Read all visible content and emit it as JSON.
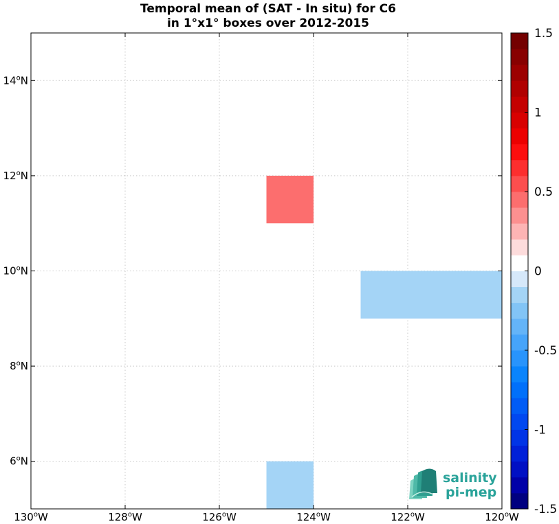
{
  "chart_data": {
    "type": "heatmap",
    "title_line1": "Temporal mean of (SAT - In situ) for C6",
    "title_line2": "in 1°x1° boxes over 2012-2015",
    "xlim": [
      -130,
      -120
    ],
    "ylim": [
      5,
      15
    ],
    "x_ticks": [
      {
        "value": -130,
        "label": "130",
        "unit": "W"
      },
      {
        "value": -128,
        "label": "128",
        "unit": "W"
      },
      {
        "value": -126,
        "label": "126",
        "unit": "W"
      },
      {
        "value": -124,
        "label": "124",
        "unit": "W"
      },
      {
        "value": -122,
        "label": "122",
        "unit": "W"
      },
      {
        "value": -120,
        "label": "120",
        "unit": "W"
      }
    ],
    "y_ticks": [
      {
        "value": 6,
        "label": "6",
        "unit": "N"
      },
      {
        "value": 8,
        "label": "8",
        "unit": "N"
      },
      {
        "value": 10,
        "label": "10",
        "unit": "N"
      },
      {
        "value": 12,
        "label": "12",
        "unit": "N"
      },
      {
        "value": 14,
        "label": "14",
        "unit": "N"
      }
    ],
    "degree_symbol": "o",
    "grid": true,
    "cells": [
      {
        "lon": -125,
        "lat": 11,
        "value": 0.4
      },
      {
        "lon": -123,
        "lat": 9,
        "value": -0.1
      },
      {
        "lon": -122,
        "lat": 9,
        "value": -0.1
      },
      {
        "lon": -121,
        "lat": 9,
        "value": -0.1
      },
      {
        "lon": -125,
        "lat": 5,
        "value": -0.1
      }
    ],
    "colorbar": {
      "min": -1.5,
      "max": 1.5,
      "steps": 30,
      "ticks": [
        {
          "value": 1.5,
          "label": "1.5"
        },
        {
          "value": 1,
          "label": "1"
        },
        {
          "value": 0.5,
          "label": "0.5"
        },
        {
          "value": 0,
          "label": "0"
        },
        {
          "value": -0.5,
          "label": "-0.5"
        },
        {
          "value": -1,
          "label": "-1"
        },
        {
          "value": -1.5,
          "label": "-1.5"
        }
      ],
      "colors": [
        "#000080",
        "#0000a8",
        "#0010c4",
        "#0020d8",
        "#0034e6",
        "#0048f0",
        "#005cf6",
        "#0070fa",
        "#0a84fc",
        "#2894fc",
        "#46a4fa",
        "#64b4f8",
        "#82c4f6",
        "#a4d4f6",
        "#d6e8fa",
        "#ffffff",
        "#fddcdc",
        "#fdb4b4",
        "#fc9090",
        "#fc6e6e",
        "#fc4e4e",
        "#fc2e2e",
        "#fc0e0e",
        "#ec0000",
        "#d80000",
        "#c40000",
        "#b00000",
        "#9c0000",
        "#880000",
        "#740000"
      ]
    }
  },
  "logo": {
    "line1": "salinity",
    "line2": "pi-mep",
    "color": "#2aa39a"
  }
}
